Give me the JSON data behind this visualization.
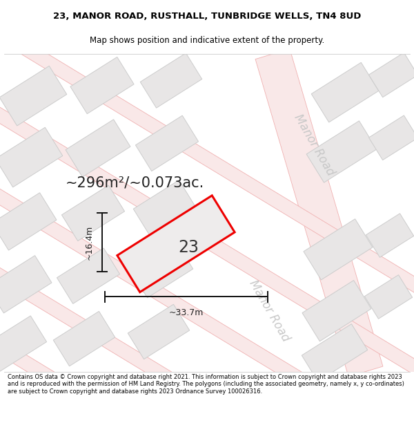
{
  "title_line1": "23, MANOR ROAD, RUSTHALL, TUNBRIDGE WELLS, TN4 8UD",
  "title_line2": "Map shows position and indicative extent of the property.",
  "footer_text": "Contains OS data © Crown copyright and database right 2021. This information is subject to Crown copyright and database rights 2023 and is reproduced with the permission of HM Land Registry. The polygons (including the associated geometry, namely x, y co-ordinates) are subject to Crown copyright and database rights 2023 Ordnance Survey 100026316.",
  "map_bg": "#f7f6f6",
  "road_fill": "#f9e8e8",
  "road_edge": "#f0b0b0",
  "building_fill": "#e8e6e6",
  "building_edge": "#cccccc",
  "highlight_fill": "#eeecec",
  "highlight_edge": "#ee0000",
  "highlight_lw": 2.2,
  "road_label_color": "#c8c8c8",
  "dim_color": "#111111",
  "area_text": "~296m²/~0.073ac.",
  "number_text": "23",
  "dim_width_text": "~33.7m",
  "dim_height_text": "~16.4m",
  "road_label": "Manor Road",
  "title_fontsize": 9.5,
  "subtitle_fontsize": 8.5,
  "area_fontsize": 15,
  "number_fontsize": 17,
  "dim_fontsize": 9,
  "road_label_fontsize": 12
}
